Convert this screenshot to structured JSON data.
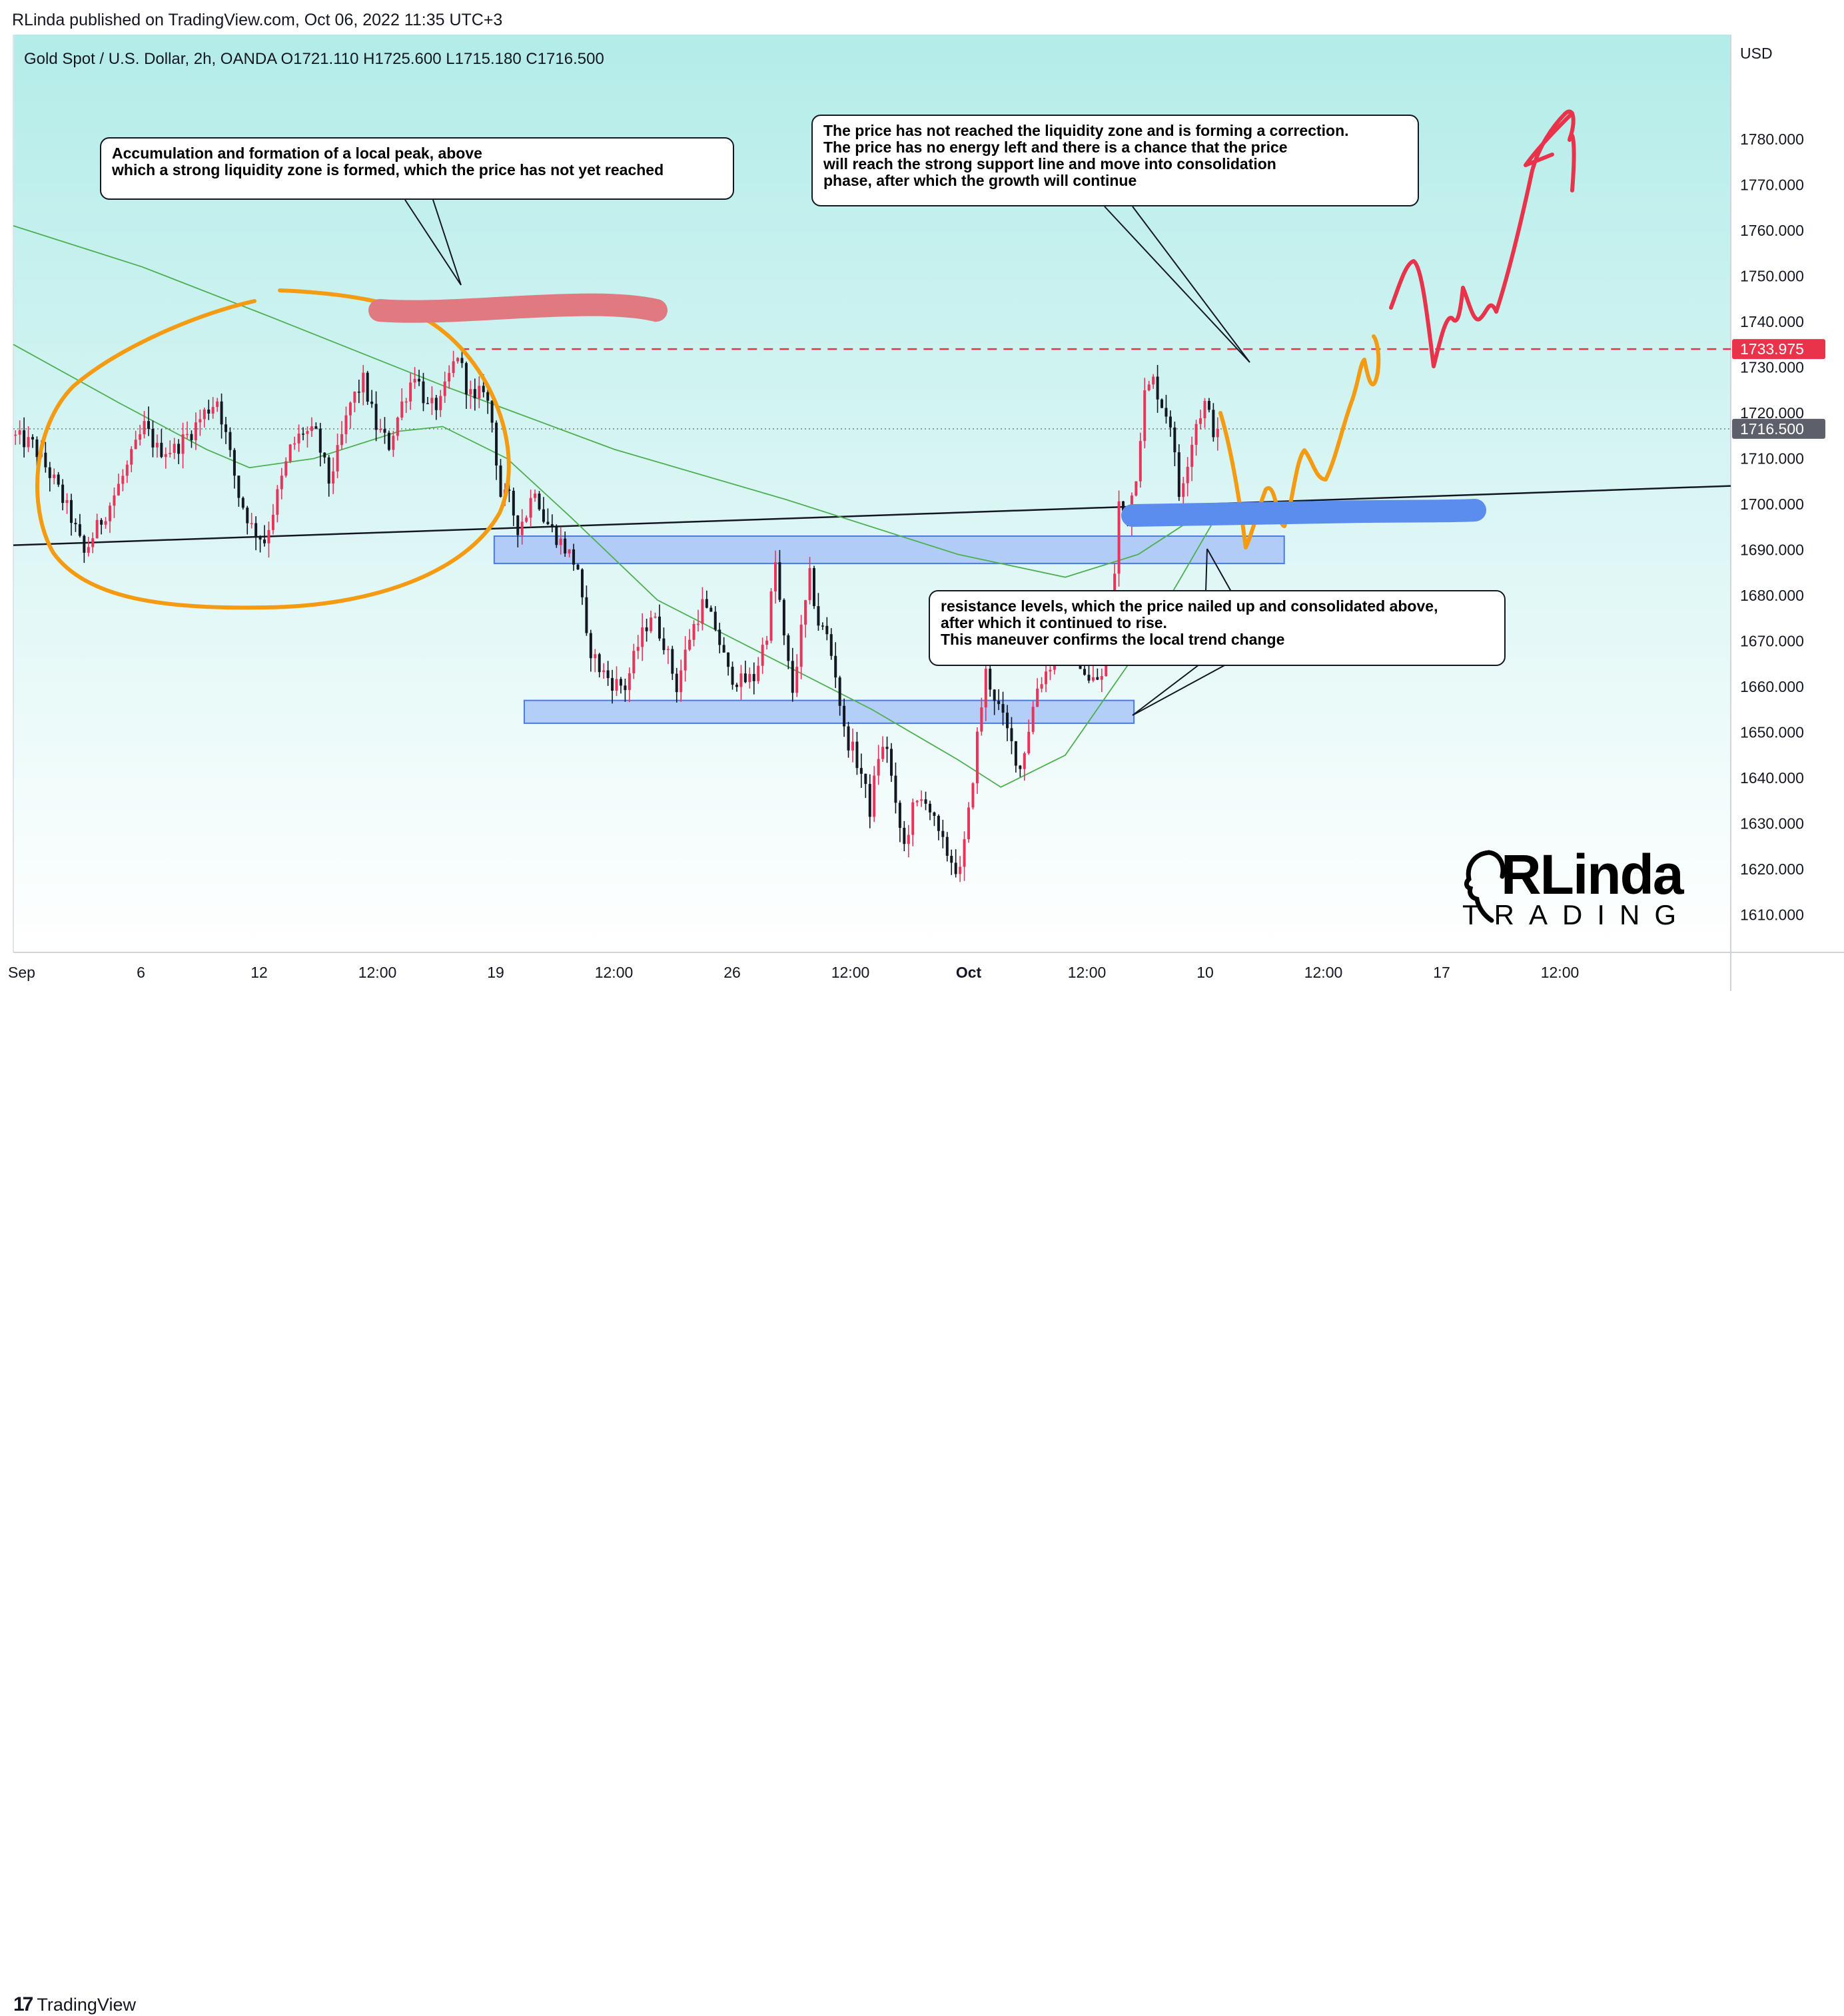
{
  "publisher": "RLinda published on TradingView.com, Oct 06, 2022 11:35 UTC+3",
  "footer_logo": "TradingView",
  "brand": {
    "top": "RLinda",
    "bottom": "TRADING"
  },
  "colors": {
    "background_top": "#b3ece9",
    "background_bottom": "#ffffff",
    "candle_up": "#e8335a",
    "candle_down": "#131722",
    "orange": "#f59b12",
    "red_pen": "#e8334a",
    "blue_pen": "#5b8def",
    "zone_fill": "#a9c6f7",
    "zone_border": "#4a7ae6",
    "liquidity_line": "#e8334a",
    "ma_line": "#4caf50"
  },
  "chart_data": {
    "type": "candlestick",
    "symbol_line": "Gold Spot / U.S. Dollar, 2h, OANDA  O1721.110  H1725.600  L1715.180  C1716.500",
    "currency": "USD",
    "ylim": [
      1605,
      1795
    ],
    "y_ticks": [
      "1780.000",
      "1770.000",
      "1760.000",
      "1750.000",
      "1740.000",
      "1730.000",
      "1720.000",
      "1710.000",
      "1700.000",
      "1690.000",
      "1680.000",
      "1670.000",
      "1660.000",
      "1650.000",
      "1640.000",
      "1630.000",
      "1620.000",
      "1610.000"
    ],
    "x_ticks": [
      "Sep",
      "6",
      "12",
      "12:00",
      "19",
      "12:00",
      "26",
      "12:00",
      "Oct",
      "12:00",
      "10",
      "12:00",
      "17",
      "12:00"
    ],
    "bold_x_ticks": [
      "Oct"
    ],
    "price_labels": [
      {
        "label": "1733.975",
        "value": 1733.975,
        "style": "red"
      },
      {
        "label": "1716.500",
        "value": 1716.5,
        "style": "gray"
      }
    ],
    "candle_path": [
      [
        0,
        1715
      ],
      [
        5,
        1713
      ],
      [
        10,
        1705
      ],
      [
        14,
        1697
      ],
      [
        17,
        1689
      ],
      [
        19,
        1693
      ],
      [
        23,
        1700
      ],
      [
        27,
        1708
      ],
      [
        31,
        1717
      ],
      [
        34,
        1712
      ],
      [
        38,
        1712
      ],
      [
        42,
        1716
      ],
      [
        45,
        1720
      ],
      [
        48,
        1723
      ],
      [
        50,
        1715
      ],
      [
        53,
        1702
      ],
      [
        56,
        1695
      ],
      [
        59,
        1692
      ],
      [
        62,
        1702
      ],
      [
        65,
        1712
      ],
      [
        68,
        1716
      ],
      [
        71,
        1715
      ],
      [
        74,
        1705
      ],
      [
        76,
        1711
      ],
      [
        79,
        1722
      ],
      [
        82,
        1727
      ],
      [
        85,
        1717
      ],
      [
        88,
        1713
      ],
      [
        91,
        1722
      ],
      [
        94,
        1729
      ],
      [
        97,
        1721
      ],
      [
        100,
        1722
      ],
      [
        102,
        1728
      ],
      [
        104,
        1733
      ],
      [
        106,
        1726
      ],
      [
        108,
        1722
      ],
      [
        110,
        1726
      ],
      [
        112,
        1718
      ],
      [
        114,
        1702
      ],
      [
        116,
        1701
      ],
      [
        118,
        1695
      ],
      [
        120,
        1698
      ],
      [
        122,
        1704
      ],
      [
        124,
        1697
      ],
      [
        127,
        1693
      ],
      [
        130,
        1689
      ],
      [
        132,
        1686
      ],
      [
        134,
        1670
      ],
      [
        137,
        1664
      ],
      [
        140,
        1661
      ],
      [
        143,
        1660
      ],
      [
        146,
        1669
      ],
      [
        149,
        1676
      ],
      [
        152,
        1670
      ],
      [
        155,
        1660
      ],
      [
        158,
        1671
      ],
      [
        161,
        1678
      ],
      [
        164,
        1673
      ],
      [
        167,
        1663
      ],
      [
        170,
        1661
      ],
      [
        173,
        1662
      ],
      [
        176,
        1672
      ],
      [
        178,
        1687
      ],
      [
        180,
        1670
      ],
      [
        182,
        1659
      ],
      [
        184,
        1672
      ],
      [
        186,
        1684
      ],
      [
        188,
        1674
      ],
      [
        190,
        1671
      ],
      [
        192,
        1663
      ],
      [
        194,
        1650
      ],
      [
        196,
        1646
      ],
      [
        198,
        1641
      ],
      [
        200,
        1633
      ],
      [
        202,
        1645
      ],
      [
        204,
        1647
      ],
      [
        206,
        1633
      ],
      [
        208,
        1625
      ],
      [
        210,
        1633
      ],
      [
        213,
        1636
      ],
      [
        216,
        1627
      ],
      [
        219,
        1622
      ],
      [
        221,
        1619
      ],
      [
        223,
        1632
      ],
      [
        225,
        1649
      ],
      [
        227,
        1663
      ],
      [
        229,
        1658
      ],
      [
        232,
        1650
      ],
      [
        235,
        1642
      ],
      [
        237,
        1651
      ],
      [
        239,
        1660
      ],
      [
        242,
        1665
      ],
      [
        245,
        1669
      ],
      [
        248,
        1668
      ],
      [
        251,
        1661
      ],
      [
        254,
        1662
      ],
      [
        256,
        1669
      ],
      [
        258,
        1700
      ],
      [
        260,
        1697
      ],
      [
        262,
        1707
      ],
      [
        264,
        1724
      ],
      [
        266,
        1727
      ],
      [
        268,
        1722
      ],
      [
        270,
        1718
      ],
      [
        272,
        1702
      ],
      [
        274,
        1710
      ],
      [
        276,
        1718
      ],
      [
        278,
        1722
      ],
      [
        280,
        1716.5
      ]
    ],
    "last_index": 280,
    "total_slots": 400,
    "trendline": {
      "from": [
        0,
        1691
      ],
      "to": [
        400,
        1704
      ]
    },
    "ma_long": [
      [
        0,
        1761
      ],
      [
        30,
        1752
      ],
      [
        60,
        1741
      ],
      [
        100,
        1726
      ],
      [
        140,
        1712
      ],
      [
        180,
        1701
      ],
      [
        220,
        1689
      ],
      [
        245,
        1684
      ],
      [
        262,
        1689
      ],
      [
        280,
        1700
      ]
    ],
    "ma_short": [
      [
        0,
        1735
      ],
      [
        25,
        1722
      ],
      [
        45,
        1712
      ],
      [
        55,
        1708
      ],
      [
        70,
        1710
      ],
      [
        90,
        1716
      ],
      [
        100,
        1717
      ],
      [
        115,
        1710
      ],
      [
        130,
        1697
      ],
      [
        150,
        1679
      ],
      [
        175,
        1667
      ],
      [
        200,
        1655
      ],
      [
        220,
        1644
      ],
      [
        230,
        1638
      ],
      [
        245,
        1645
      ],
      [
        262,
        1668
      ],
      [
        272,
        1684
      ],
      [
        280,
        1697
      ]
    ],
    "zones": [
      {
        "from": 112,
        "to": 296,
        "low": 1687,
        "high": 1693
      },
      {
        "from": 119,
        "to": 261,
        "low": 1652,
        "high": 1657
      }
    ],
    "liquidity_level": {
      "value": 1733.975,
      "from": 104
    },
    "annotations": [
      "Accumulation and formation of a local peak, above\nwhich a strong liquidity zone is formed, which the price has not yet reached",
      "The price has not reached the liquidity zone and is forming a correction.\nThe price has no energy left and there is a chance that the price\nwill reach the strong support line and move into consolidation\nphase, after which the growth will continue",
      "resistance levels, which the price nailed up and consolidated above,\nafter which it continued to rise.\nThis maneuver confirms the local trend change"
    ]
  }
}
